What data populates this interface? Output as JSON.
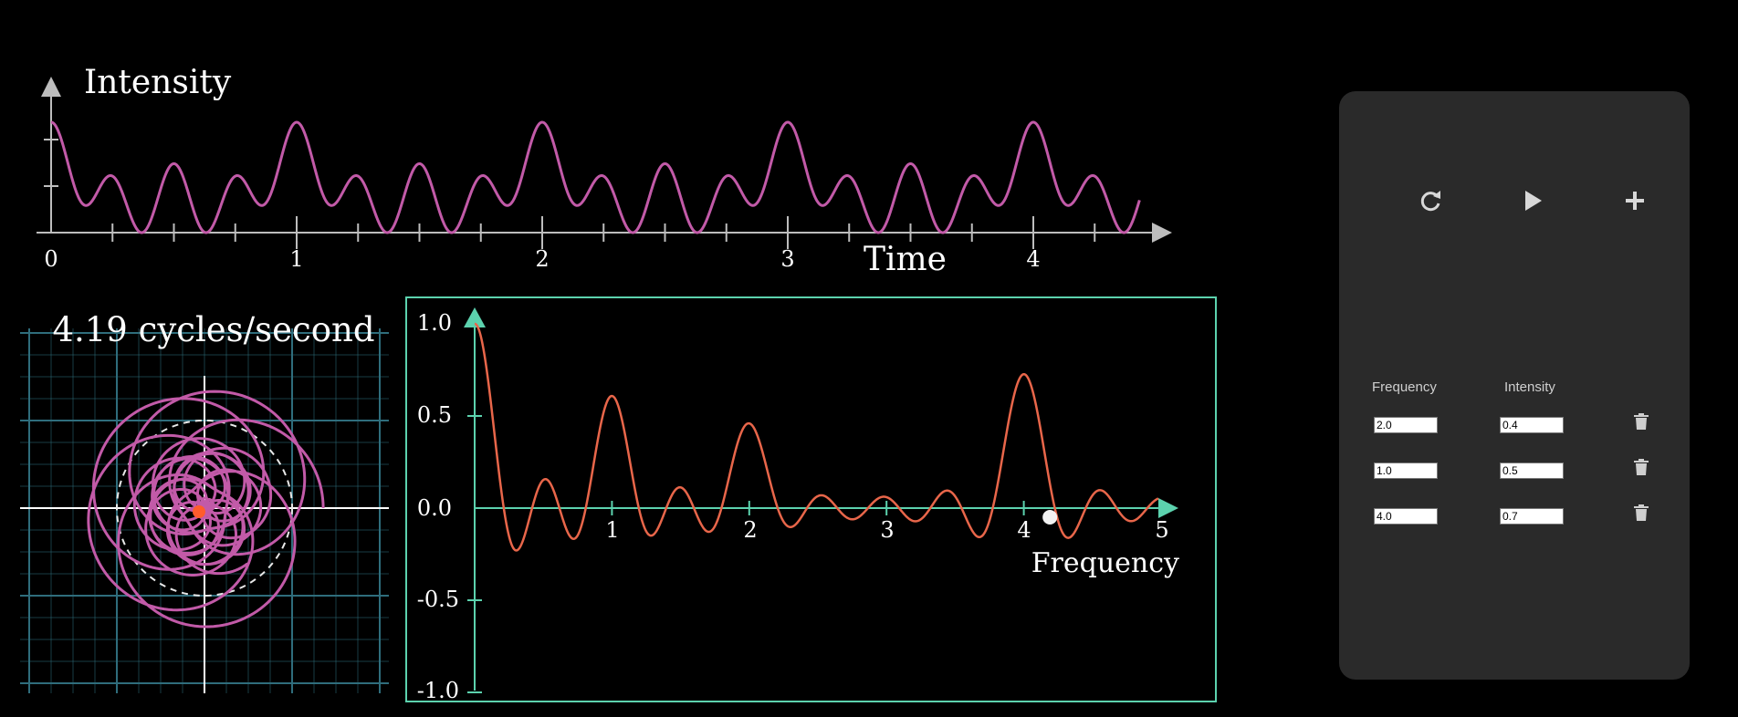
{
  "top_plot": {
    "y_label": "Intensity",
    "x_label": "Time",
    "x_ticks": [
      "0",
      "1",
      "2",
      "3",
      "4"
    ],
    "x_range": [
      0,
      4.5
    ],
    "signal": [
      {
        "frequency": 2.0,
        "intensity": 0.4
      },
      {
        "frequency": 1.0,
        "intensity": 0.5
      },
      {
        "frequency": 4.0,
        "intensity": 0.7
      }
    ],
    "color": "#c25aa8"
  },
  "winding": {
    "label": "4.19 cycles/second",
    "winding_frequency": 4.19,
    "color": "#c25aa8",
    "center_color": "#ff5c2c",
    "grid_color": "#2f6d7c"
  },
  "transform": {
    "y_ticks": [
      "1.0",
      "0.5",
      "0.0",
      "-0.5",
      "-1.0"
    ],
    "x_ticks": [
      "1",
      "2",
      "3",
      "4",
      "5"
    ],
    "x_label": "Frequency",
    "x_range": [
      0,
      5
    ],
    "y_range": [
      -1,
      1
    ],
    "marker_frequency": 4.19,
    "curve_color": "#e8664a",
    "axis_color": "#5cd2ae"
  },
  "panel": {
    "reset_icon": "refresh-icon",
    "play_icon": "play-icon",
    "add_icon": "plus-icon",
    "frequency_header": "Frequency",
    "intensity_header": "Intensity",
    "rows": [
      {
        "frequency": "2.0",
        "intensity": "0.4"
      },
      {
        "frequency": "1.0",
        "intensity": "0.5"
      },
      {
        "frequency": "4.0",
        "intensity": "0.7"
      }
    ]
  }
}
